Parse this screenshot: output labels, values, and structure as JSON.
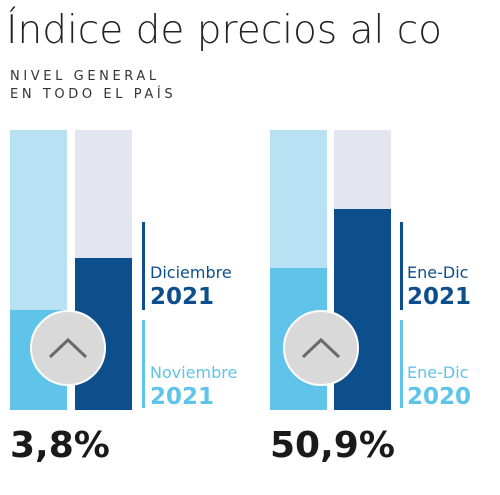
{
  "title": "Índice de precios al co",
  "subtitle": [
    "NIVEL GENERAL",
    "EN TODO EL PAÍS"
  ],
  "chart_data": [
    {
      "type": "bar",
      "series": [
        {
          "name": "Diciembre 2021",
          "value": 3.8,
          "color": "#0d4f8d"
        },
        {
          "name": "Noviembre 2021",
          "value": 2.5,
          "color": "#5fc3ea"
        }
      ],
      "ylim": [
        0,
        7
      ],
      "value_label": "3,8%",
      "legend": [
        {
          "line1": "Diciembre",
          "line2": "2021",
          "color": "#0d4f8d"
        },
        {
          "line1": "Noviembre",
          "line2": "2021",
          "color": "#5fc3ea"
        }
      ],
      "icon": "chevron-up-icon"
    },
    {
      "type": "bar",
      "series": [
        {
          "name": "Ene-Dic 2021",
          "value": 50.9,
          "color": "#0d4f8d"
        },
        {
          "name": "Ene-Dic 2020",
          "value": 36.1,
          "color": "#5fc3ea"
        }
      ],
      "ylim": [
        0,
        71
      ],
      "value_label": "50,9%",
      "legend": [
        {
          "line1": "Ene-Dic",
          "line2": "2021",
          "color": "#0d4f8d"
        },
        {
          "line1": "Ene-Dic",
          "line2": "2020",
          "color": "#5fc3ea"
        }
      ],
      "icon": "chevron-up-icon"
    }
  ]
}
